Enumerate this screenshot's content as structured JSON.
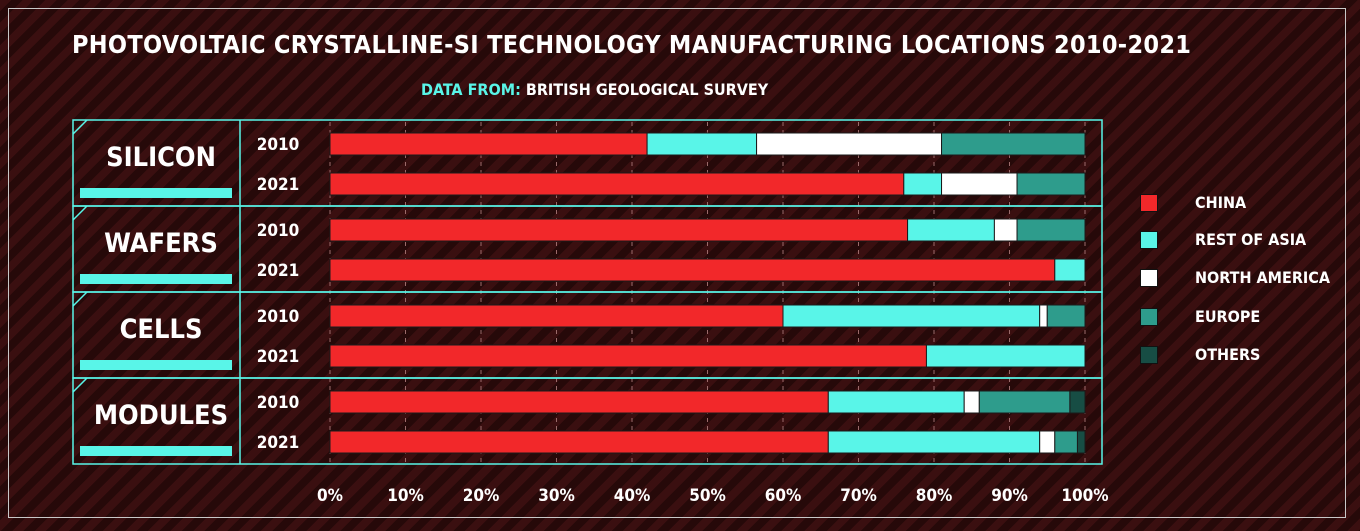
{
  "title": "PHOTOVOLTAIC CRYSTALLINE-SI TECHNOLOGY MANUFACTURING LOCATIONS 2010-2021",
  "subtitle": {
    "prefix": "DATA FROM:",
    "source": "BRITISH GEOLOGICAL SURVEY"
  },
  "colors": {
    "accent": "#59f5e8",
    "china": "#f2282a",
    "rest_of_asia": "#59f5e8",
    "north_america": "#ffffff",
    "europe": "#2e9c8c",
    "others": "#174d44"
  },
  "chart_data": {
    "type": "bar",
    "orientation": "horizontal",
    "stacked": true,
    "groups": [
      {
        "label": "SILICON",
        "rows": [
          {
            "year": "2010",
            "values": [
              42,
              14.5,
              24.5,
              19,
              0
            ]
          },
          {
            "year": "2021",
            "values": [
              76,
              5,
              10,
              9,
              0
            ]
          }
        ]
      },
      {
        "label": "WAFERS",
        "rows": [
          {
            "year": "2010",
            "values": [
              76.5,
              11.5,
              3,
              9,
              0
            ]
          },
          {
            "year": "2021",
            "values": [
              96,
              4,
              0,
              0,
              0
            ]
          }
        ]
      },
      {
        "label": "CELLS",
        "rows": [
          {
            "year": "2010",
            "values": [
              60,
              34,
              1,
              5,
              0
            ]
          },
          {
            "year": "2021",
            "values": [
              79,
              21,
              0,
              0,
              0
            ]
          }
        ]
      },
      {
        "label": "MODULES",
        "rows": [
          {
            "year": "2010",
            "values": [
              66,
              18,
              2,
              12,
              2
            ]
          },
          {
            "year": "2021",
            "values": [
              66,
              28,
              2,
              3,
              1
            ]
          }
        ]
      }
    ],
    "series": [
      {
        "name": "CHINA",
        "color": "#f2282a"
      },
      {
        "name": "REST OF ASIA",
        "color": "#59f5e8"
      },
      {
        "name": "NORTH AMERICA",
        "color": "#ffffff"
      },
      {
        "name": "EUROPE",
        "color": "#2e9c8c"
      },
      {
        "name": "OTHERS",
        "color": "#174d44"
      }
    ],
    "xlim": [
      0,
      100
    ],
    "x_ticks": [
      "0%",
      "10%",
      "20%",
      "30%",
      "40%",
      "50%",
      "60%",
      "70%",
      "80%",
      "90%",
      "100%"
    ],
    "grid": true,
    "legend_position": "right"
  }
}
